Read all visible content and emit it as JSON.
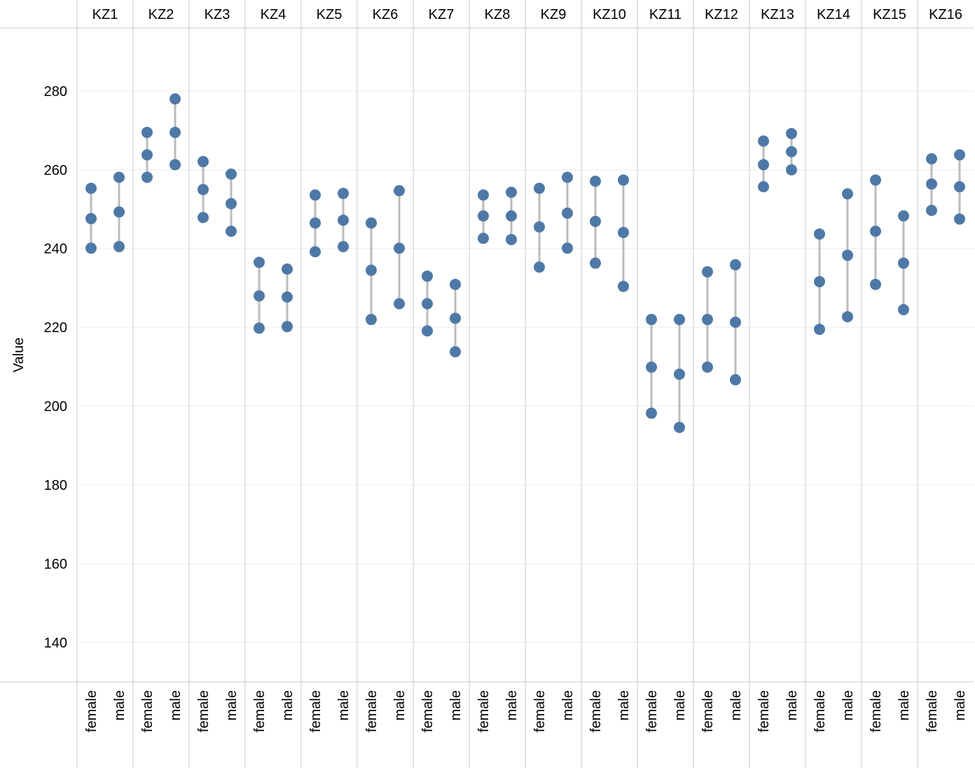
{
  "chart_data": {
    "type": "scatter",
    "ylabel": "Value",
    "ylim": [
      130,
      296
    ],
    "yticks": [
      140,
      160,
      180,
      200,
      220,
      240,
      260,
      280
    ],
    "grid": true,
    "color": "#4e79a7",
    "range_line_color": "#bbbbbb",
    "facets": [
      {
        "name": "KZ1",
        "groups": [
          {
            "category": "female",
            "values": [
              240.1,
              247.6,
              255.3
            ]
          },
          {
            "category": "male",
            "values": [
              240.5,
              249.3,
              258.1
            ]
          }
        ]
      },
      {
        "name": "KZ2",
        "groups": [
          {
            "category": "female",
            "values": [
              258.1,
              263.8,
              269.5
            ]
          },
          {
            "category": "male",
            "values": [
              261.3,
              269.5,
              278.0
            ]
          }
        ]
      },
      {
        "name": "KZ3",
        "groups": [
          {
            "category": "female",
            "values": [
              247.9,
              255.0,
              262.1
            ]
          },
          {
            "category": "male",
            "values": [
              244.4,
              251.4,
              258.9
            ]
          }
        ]
      },
      {
        "name": "KZ4",
        "groups": [
          {
            "category": "female",
            "values": [
              219.8,
              228.0,
              236.5
            ]
          },
          {
            "category": "male",
            "values": [
              220.2,
              227.7,
              234.8
            ]
          }
        ]
      },
      {
        "name": "KZ5",
        "groups": [
          {
            "category": "female",
            "values": [
              239.2,
              246.5,
              253.6
            ]
          },
          {
            "category": "male",
            "values": [
              240.5,
              247.2,
              254.0
            ]
          }
        ]
      },
      {
        "name": "KZ6",
        "groups": [
          {
            "category": "female",
            "values": [
              222.0,
              234.5,
              246.5
            ]
          },
          {
            "category": "male",
            "values": [
              226.0,
              240.1,
              254.7
            ]
          }
        ]
      },
      {
        "name": "KZ7",
        "groups": [
          {
            "category": "female",
            "values": [
              219.1,
              226.0,
              233.0
            ]
          },
          {
            "category": "male",
            "values": [
              213.8,
              222.3,
              230.9
            ]
          }
        ]
      },
      {
        "name": "KZ8",
        "groups": [
          {
            "category": "female",
            "values": [
              242.6,
              248.3,
              253.6
            ]
          },
          {
            "category": "male",
            "values": [
              242.3,
              248.3,
              254.3
            ]
          }
        ]
      },
      {
        "name": "KZ9",
        "groups": [
          {
            "category": "female",
            "values": [
              235.3,
              245.5,
              255.3
            ]
          },
          {
            "category": "male",
            "values": [
              240.1,
              249.0,
              258.1
            ]
          }
        ]
      },
      {
        "name": "KZ10",
        "groups": [
          {
            "category": "female",
            "values": [
              236.3,
              246.9,
              257.1
            ]
          },
          {
            "category": "male",
            "values": [
              230.4,
              244.1,
              257.4
            ]
          }
        ]
      },
      {
        "name": "KZ11",
        "groups": [
          {
            "category": "female",
            "values": [
              198.2,
              209.9,
              222.0
            ]
          },
          {
            "category": "male",
            "values": [
              194.6,
              208.1,
              222.0
            ]
          }
        ]
      },
      {
        "name": "KZ12",
        "groups": [
          {
            "category": "female",
            "values": [
              209.9,
              222.0,
              234.1
            ]
          },
          {
            "category": "male",
            "values": [
              206.7,
              221.3,
              235.9
            ]
          }
        ]
      },
      {
        "name": "KZ13",
        "groups": [
          {
            "category": "female",
            "values": [
              255.7,
              261.3,
              267.3
            ]
          },
          {
            "category": "male",
            "values": [
              260.0,
              264.6,
              269.2
            ]
          }
        ]
      },
      {
        "name": "KZ14",
        "groups": [
          {
            "category": "female",
            "values": [
              219.5,
              231.6,
              243.7
            ]
          },
          {
            "category": "male",
            "values": [
              222.7,
              238.3,
              253.9
            ]
          }
        ]
      },
      {
        "name": "KZ15",
        "groups": [
          {
            "category": "female",
            "values": [
              230.9,
              244.4,
              257.4
            ]
          },
          {
            "category": "male",
            "values": [
              224.5,
              236.3,
              248.3
            ]
          }
        ]
      },
      {
        "name": "KZ16",
        "groups": [
          {
            "category": "female",
            "values": [
              249.7,
              256.4,
              262.8
            ]
          },
          {
            "category": "male",
            "values": [
              247.5,
              255.7,
              263.8
            ]
          }
        ]
      }
    ]
  }
}
